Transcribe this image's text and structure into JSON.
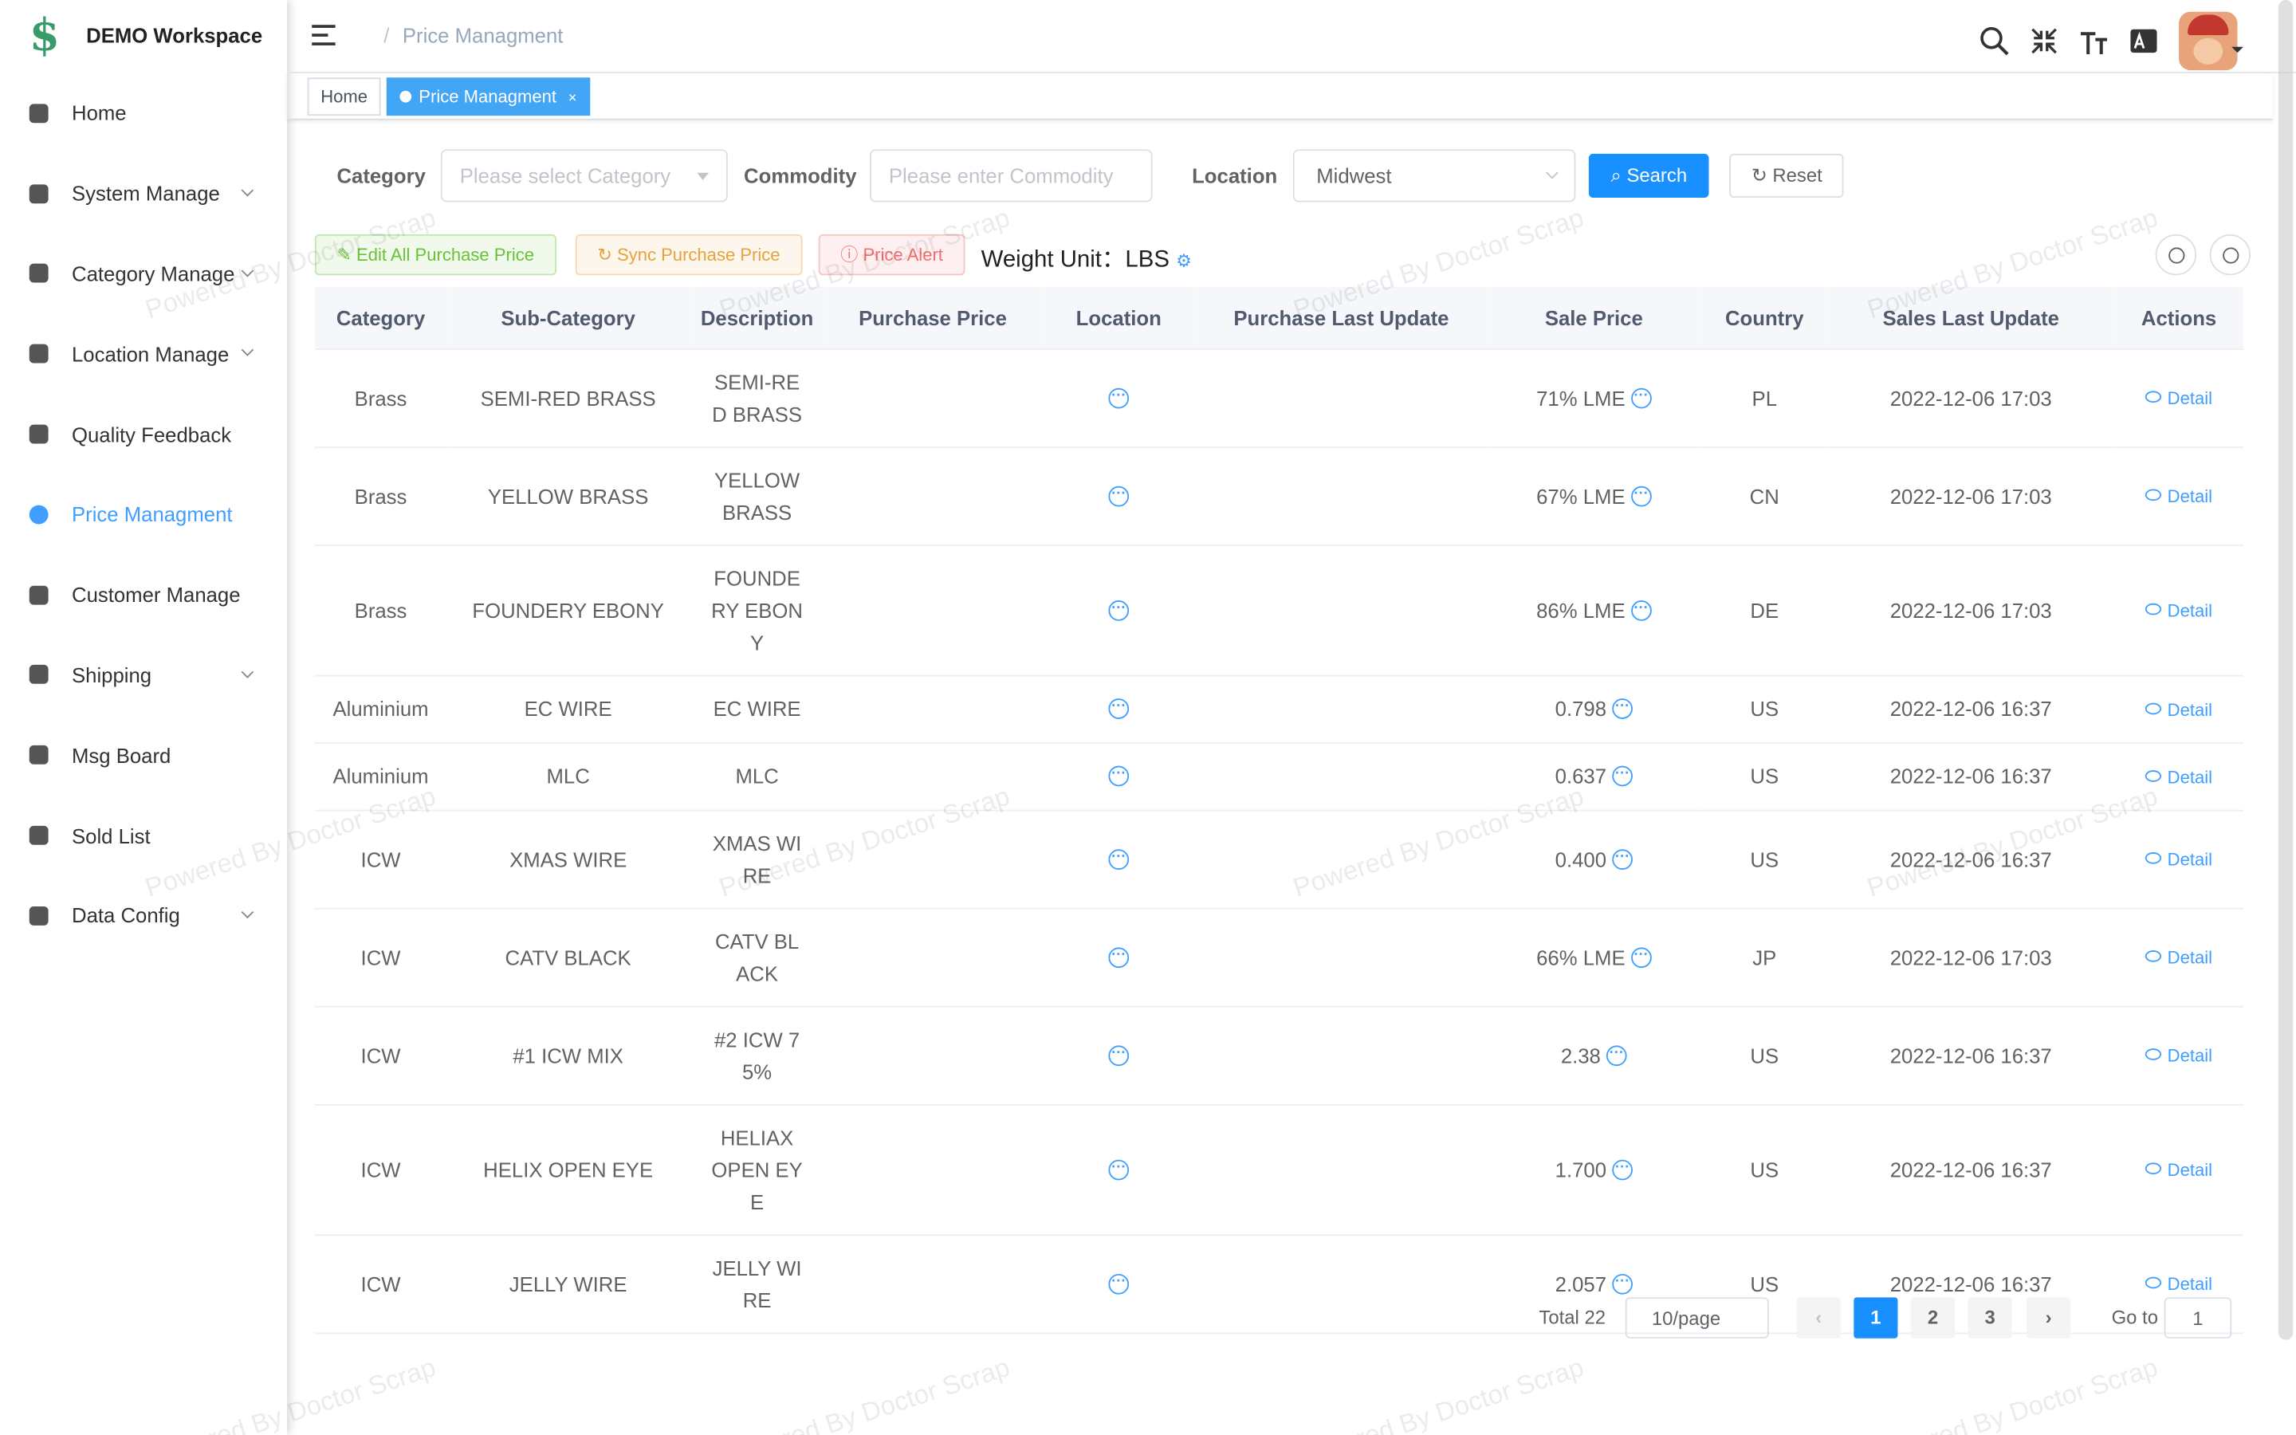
{
  "sidebar": {
    "brand": "DEMO Workspace",
    "menu": [
      {
        "label": "Home",
        "expandable": false
      },
      {
        "label": "System Manage",
        "expandable": true
      },
      {
        "label": "Category Manage",
        "expandable": true
      },
      {
        "label": "Location Manage",
        "expandable": true
      },
      {
        "label": "Quality Feedback",
        "expandable": false
      },
      {
        "label": "Price Managment",
        "expandable": false,
        "active": true
      },
      {
        "label": "Customer Manage",
        "expandable": false
      },
      {
        "label": "Shipping",
        "expandable": true
      },
      {
        "label": "Msg Board",
        "expandable": false
      },
      {
        "label": "Sold List",
        "expandable": false
      },
      {
        "label": "Data Config",
        "expandable": true
      }
    ]
  },
  "header": {
    "breadcrumb_sep": "/",
    "breadcrumb": "Price Managment"
  },
  "tabs": [
    "Home",
    "Price Managment"
  ],
  "filters": {
    "category_label": "Category",
    "category_placeholder": "Please select Category",
    "commodity_label": "Commodity",
    "commodity_placeholder": "Please enter Commodity",
    "location_label": "Location",
    "location_value": "Midwest",
    "search": "Search",
    "reset": "Reset"
  },
  "toolbar": {
    "edit_all": "Edit All Purchase Price",
    "sync": "Sync Purchase Price",
    "alert": "Price Alert",
    "weight_unit_label": "Weight Unit：",
    "weight_unit": "LBS"
  },
  "watermark": "Powered By Doctor Scrap",
  "table": {
    "headers": [
      "Category",
      "Sub-Category",
      "Description",
      "Purchase Price",
      "Location",
      "Purchase Last Update",
      "Sale Price",
      "Country",
      "Sales Last Update",
      "Actions"
    ],
    "action_label": "Detail",
    "rows": [
      [
        "Brass",
        "SEMI-RED BRASS",
        "SEMI-RED BRASS",
        "71% LME",
        "PL",
        "2022-12-06 17:03"
      ],
      [
        "Brass",
        "YELLOW BRASS",
        "YELLOW BRASS",
        "67% LME",
        "CN",
        "2022-12-06 17:03"
      ],
      [
        "Brass",
        "FOUNDERY EBONY",
        "FOUNDERY EBONY",
        "86% LME",
        "DE",
        "2022-12-06 17:03"
      ],
      [
        "Aluminium",
        "EC WIRE",
        "EC WIRE",
        "0.798",
        "US",
        "2022-12-06 16:37"
      ],
      [
        "Aluminium",
        "MLC",
        "MLC",
        "0.637",
        "US",
        "2022-12-06 16:37"
      ],
      [
        "ICW",
        "XMAS WIRE",
        "XMAS WIRE",
        "0.400",
        "US",
        "2022-12-06 16:37"
      ],
      [
        "ICW",
        "CATV BLACK",
        "CATV BLACK",
        "66% LME",
        "JP",
        "2022-12-06 17:03"
      ],
      [
        "ICW",
        "#1 ICW MIX",
        "#2 ICW 75%",
        "2.38",
        "US",
        "2022-12-06 16:37"
      ],
      [
        "ICW",
        "HELIX OPEN EYE",
        "HELIAX OPEN EYE",
        "1.700",
        "US",
        "2022-12-06 16:37"
      ],
      [
        "ICW",
        "JELLY WIRE",
        "JELLY WIRE",
        "2.057",
        "US",
        "2022-12-06 16:37"
      ]
    ]
  },
  "pagination": {
    "total": "Total 22",
    "page_size": "10/page",
    "pages": [
      "1",
      "2",
      "3"
    ],
    "current": "1",
    "goto_label": "Go to",
    "goto_value": "1"
  }
}
